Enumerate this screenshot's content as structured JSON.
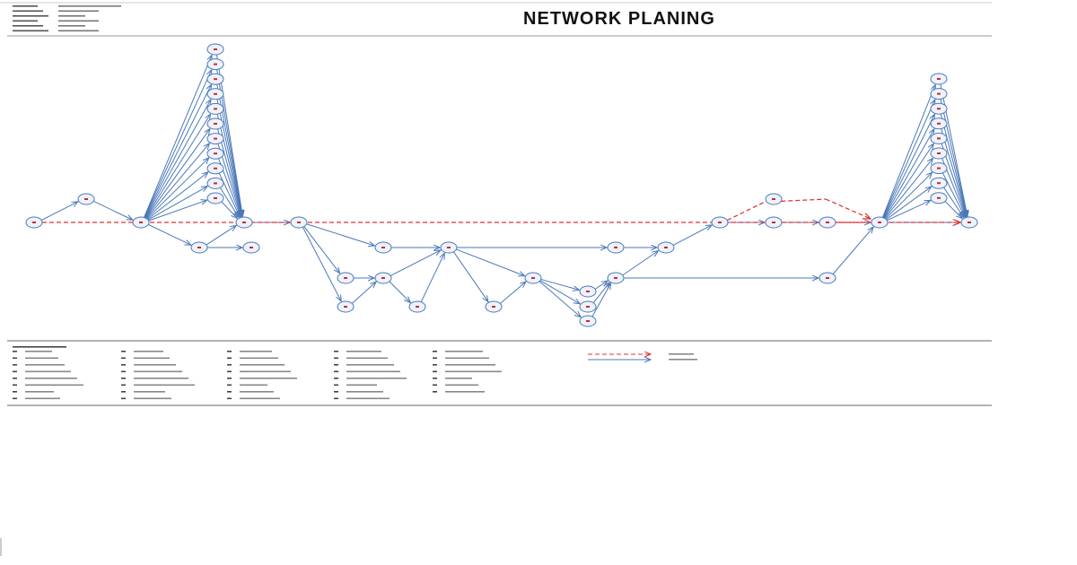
{
  "header": {
    "title": "NETWORK PLANING"
  }
}
